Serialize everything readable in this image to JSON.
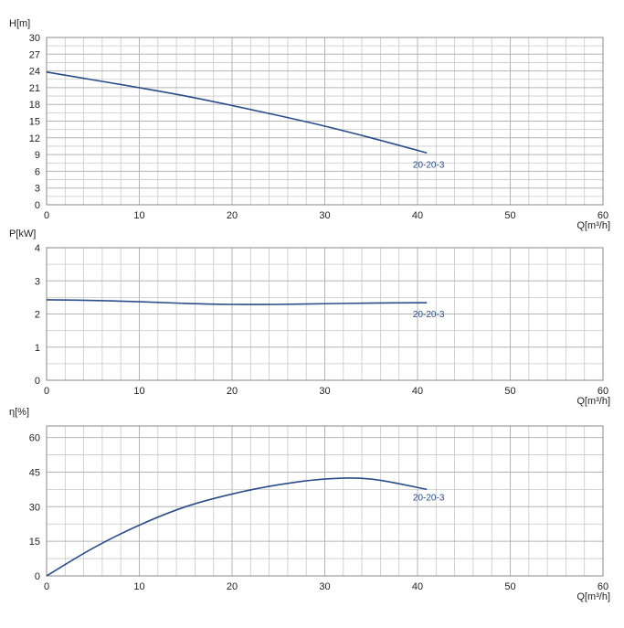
{
  "colors": {
    "curve": "#2b4c8a",
    "label": "#2b4c8a"
  },
  "chart_data": [
    {
      "type": "line",
      "title": "",
      "xlabel": "Q[m³/h]",
      "ylabel": "H[m]",
      "xlim": [
        0,
        60
      ],
      "ylim": [
        0,
        30
      ],
      "xticks": [
        0,
        10,
        20,
        30,
        40,
        50,
        60
      ],
      "yticks": [
        0,
        3,
        6,
        9,
        12,
        15,
        18,
        21,
        24,
        27,
        30
      ],
      "grid": true,
      "series": [
        {
          "name": "20-20-3",
          "x": [
            0,
            5,
            10,
            15,
            20,
            25,
            30,
            35,
            41
          ],
          "y": [
            23.8,
            22.4,
            21.0,
            19.5,
            17.8,
            16.0,
            14.1,
            12.0,
            9.3
          ]
        }
      ]
    },
    {
      "type": "line",
      "title": "",
      "xlabel": "Q[m³/h]",
      "ylabel": "P[kW]",
      "xlim": [
        0,
        60
      ],
      "ylim": [
        0,
        4
      ],
      "xticks": [
        0,
        10,
        20,
        30,
        40,
        50,
        60
      ],
      "yticks": [
        0,
        1,
        2,
        3,
        4
      ],
      "grid": true,
      "series": [
        {
          "name": "20-20-3",
          "x": [
            0,
            5,
            10,
            15,
            20,
            25,
            30,
            35,
            41
          ],
          "y": [
            2.43,
            2.41,
            2.37,
            2.32,
            2.29,
            2.29,
            2.31,
            2.33,
            2.34
          ]
        }
      ]
    },
    {
      "type": "line",
      "title": "",
      "xlabel": "Q[m³/h]",
      "ylabel": "η[%]",
      "xlim": [
        0,
        60
      ],
      "ylim": [
        0,
        65
      ],
      "xticks": [
        0,
        10,
        20,
        30,
        40,
        50,
        60
      ],
      "yticks": [
        0,
        15,
        30,
        45,
        60
      ],
      "grid": true,
      "series": [
        {
          "name": "20-20-3",
          "x": [
            0,
            5,
            10,
            15,
            20,
            25,
            30,
            35,
            41
          ],
          "y": [
            0,
            12,
            22,
            30,
            35.5,
            39.5,
            42,
            42,
            37.5
          ]
        }
      ]
    }
  ]
}
